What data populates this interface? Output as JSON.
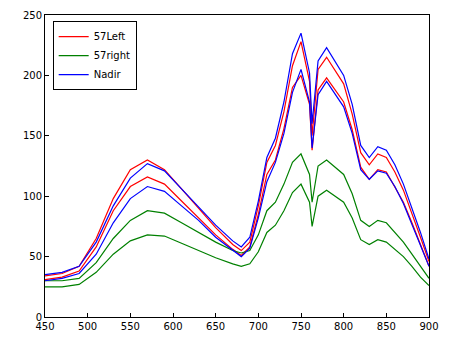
{
  "chart_data": {
    "type": "line",
    "x": [
      450,
      470,
      490,
      510,
      530,
      550,
      570,
      590,
      610,
      630,
      650,
      670,
      680,
      690,
      700,
      710,
      720,
      730,
      740,
      750,
      760,
      763,
      770,
      780,
      790,
      800,
      810,
      820,
      830,
      840,
      850,
      860,
      870,
      880,
      890,
      900
    ],
    "series": [
      {
        "name": "57Left",
        "color": "#ff0000",
        "values": [
          34,
          36,
          42,
          65,
          98,
          122,
          130,
          122,
          106,
          90,
          74,
          60,
          55,
          62,
          92,
          128,
          142,
          170,
          208,
          228,
          195,
          150,
          205,
          215,
          204,
          193,
          168,
          136,
          126,
          135,
          132,
          120,
          105,
          86,
          66,
          46
        ]
      },
      {
        "name": "57Left",
        "color": "#ff0000",
        "values": [
          31,
          33,
          38,
          58,
          88,
          108,
          116,
          110,
          96,
          82,
          68,
          56,
          51,
          58,
          85,
          118,
          130,
          156,
          190,
          200,
          176,
          138,
          188,
          198,
          188,
          178,
          155,
          124,
          114,
          122,
          120,
          108,
          95,
          78,
          60,
          42
        ]
      },
      {
        "name": "57right",
        "color": "#008000",
        "values": [
          30,
          30,
          32,
          45,
          65,
          80,
          88,
          86,
          78,
          70,
          62,
          55,
          53,
          55,
          68,
          88,
          95,
          110,
          128,
          135,
          118,
          95,
          125,
          130,
          124,
          118,
          102,
          80,
          75,
          80,
          78,
          70,
          62,
          52,
          42,
          32
        ]
      },
      {
        "name": "57right",
        "color": "#008000",
        "values": [
          25,
          25,
          27,
          37,
          52,
          63,
          68,
          67,
          61,
          55,
          49,
          44,
          42,
          44,
          54,
          70,
          76,
          88,
          103,
          110,
          95,
          75,
          100,
          105,
          100,
          95,
          82,
          64,
          60,
          64,
          62,
          56,
          50,
          42,
          33,
          26
        ]
      },
      {
        "name": "Nadir",
        "color": "#0000ff",
        "values": [
          35,
          37,
          42,
          62,
          92,
          115,
          127,
          121,
          106,
          91,
          76,
          63,
          58,
          66,
          96,
          132,
          148,
          178,
          218,
          235,
          202,
          160,
          212,
          223,
          211,
          200,
          176,
          142,
          132,
          141,
          138,
          126,
          110,
          90,
          70,
          48
        ]
      },
      {
        "name": "Nadir",
        "color": "#0000ff",
        "values": [
          30,
          32,
          36,
          52,
          78,
          98,
          108,
          104,
          92,
          80,
          66,
          55,
          50,
          57,
          82,
          112,
          128,
          152,
          186,
          205,
          178,
          140,
          184,
          195,
          184,
          174,
          152,
          122,
          114,
          121,
          119,
          108,
          94,
          77,
          60,
          42
        ]
      }
    ],
    "xlim": [
      450,
      900
    ],
    "ylim": [
      0,
      250
    ],
    "xticks": [
      450,
      500,
      550,
      600,
      650,
      700,
      750,
      800,
      850,
      900
    ],
    "yticks": [
      0,
      50,
      100,
      150,
      200,
      250
    ],
    "grid": false,
    "legend": "upper left"
  }
}
